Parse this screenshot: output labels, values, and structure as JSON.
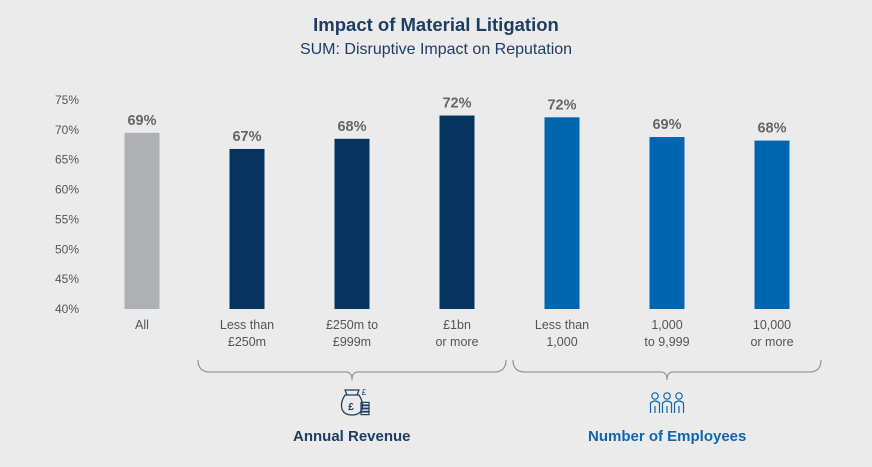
{
  "title": "Impact of Material Litigation",
  "subtitle": "SUM: Disruptive Impact on Reputation",
  "colors": {
    "all": "#adb1b3",
    "revenue": "#06345e",
    "employees": "#0066b0",
    "revenue_label": "#1d3e63",
    "employees_label": "#0e66b0",
    "bracket": "#9a9a9a"
  },
  "chart_data": {
    "type": "bar",
    "title": "Impact of Material Litigation",
    "subtitle": "SUM: Disruptive Impact on Reputation",
    "ylim": [
      40,
      75
    ],
    "yticks": [
      40,
      45,
      50,
      55,
      60,
      65,
      70,
      75
    ],
    "ytick_labels": [
      "40%",
      "45%",
      "50%",
      "55%",
      "60%",
      "65%",
      "70%",
      "75%"
    ],
    "grid": false,
    "categories": [
      [
        "All"
      ],
      [
        "Less than",
        "£250m"
      ],
      [
        "£250m to",
        "£999m"
      ],
      [
        "£1bn",
        "or more"
      ],
      [
        "Less than",
        "1,000"
      ],
      [
        "1,000",
        "to 9,999"
      ],
      [
        "10,000",
        "or more"
      ]
    ],
    "values": [
      69.5,
      66.8,
      68.5,
      72.4,
      72.1,
      68.8,
      68.2
    ],
    "data_labels": [
      "69%",
      "67%",
      "68%",
      "72%",
      "72%",
      "69%",
      "68%"
    ],
    "bar_groups": [
      "all",
      "revenue",
      "revenue",
      "revenue",
      "employees",
      "employees",
      "employees"
    ],
    "groups": [
      {
        "key": "revenue",
        "label": "Annual Revenue",
        "icon": "money-bag-icon",
        "members": [
          1,
          2,
          3
        ]
      },
      {
        "key": "employees",
        "label": "Number of Employees",
        "icon": "people-icon",
        "members": [
          4,
          5,
          6
        ]
      }
    ]
  }
}
